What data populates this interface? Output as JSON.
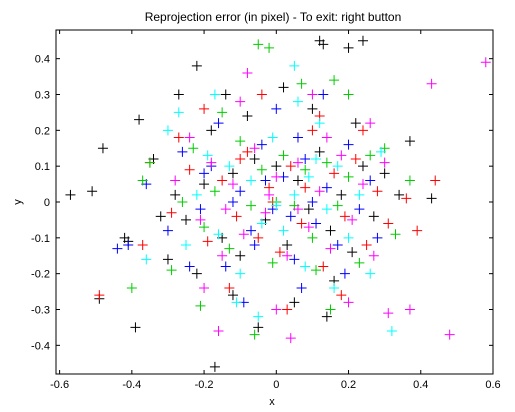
{
  "chart_data": {
    "type": "scatter",
    "title": "Reprojection error (in pixel) - To exit: right button",
    "xlabel": "x",
    "ylabel": "y",
    "xlim": [
      -0.61,
      0.6
    ],
    "ylim": [
      -0.48,
      0.48
    ],
    "xticks": [
      -0.6,
      -0.4,
      -0.2,
      0,
      0.2,
      0.4,
      0.6
    ],
    "xtick_labels": [
      "-0.6",
      "-0.4",
      "-0.2",
      "0",
      "0.2",
      "0.4",
      "0.6"
    ],
    "yticks": [
      -0.4,
      -0.3,
      -0.2,
      -0.1,
      0,
      0.1,
      0.2,
      0.3,
      0.4
    ],
    "ytick_labels": [
      "-0.4",
      "-0.3",
      "-0.2",
      "-0.1",
      "0",
      "0.1",
      "0.2",
      "0.3",
      "0.4"
    ],
    "grid": false,
    "marker": "+",
    "series": [
      {
        "color": "#000000",
        "points": [
          [
            -0.57,
            0.02
          ],
          [
            -0.51,
            0.03
          ],
          [
            -0.48,
            0.15
          ],
          [
            -0.49,
            -0.27
          ],
          [
            -0.42,
            -0.1
          ],
          [
            -0.41,
            -0.11
          ],
          [
            -0.38,
            0.23
          ],
          [
            -0.39,
            -0.35
          ],
          [
            -0.34,
            0.12
          ],
          [
            -0.3,
            -0.16
          ],
          [
            -0.27,
            0.3
          ],
          [
            -0.22,
            0.38
          ],
          [
            -0.17,
            -0.46
          ],
          [
            0.12,
            0.45
          ],
          [
            0.13,
            0.44
          ],
          [
            0.2,
            0.43
          ],
          [
            0.24,
            0.45
          ],
          [
            0.34,
            0.02
          ],
          [
            0.37,
            0.17
          ],
          [
            0.43,
            0.01
          ],
          [
            -0.32,
            -0.04
          ],
          [
            -0.28,
            0.02
          ],
          [
            -0.25,
            -0.05
          ],
          [
            -0.2,
            0.05
          ],
          [
            -0.15,
            -0.1
          ],
          [
            -0.12,
            0.08
          ],
          [
            -0.1,
            -0.15
          ],
          [
            -0.06,
            0.12
          ],
          [
            -0.03,
            -0.05
          ],
          [
            0.0,
            0.1
          ],
          [
            0.03,
            -0.12
          ],
          [
            0.06,
            0.06
          ],
          [
            0.09,
            -0.02
          ],
          [
            0.12,
            0.14
          ],
          [
            0.15,
            -0.08
          ],
          [
            0.18,
            0.02
          ],
          [
            0.21,
            -0.14
          ],
          [
            0.24,
            0.1
          ],
          [
            0.27,
            -0.04
          ],
          [
            0.3,
            0.08
          ],
          [
            -0.22,
            -0.2
          ],
          [
            -0.18,
            0.2
          ],
          [
            -0.12,
            -0.26
          ],
          [
            -0.08,
            0.24
          ],
          [
            0.05,
            -0.28
          ],
          [
            0.1,
            0.26
          ],
          [
            0.16,
            -0.22
          ],
          [
            0.22,
            0.22
          ],
          [
            -0.05,
            -0.35
          ],
          [
            0.02,
            0.32
          ],
          [
            0.14,
            -0.32
          ],
          [
            -0.14,
            0.3
          ]
        ]
      },
      {
        "color": "#0000ff",
        "points": [
          [
            -0.44,
            -0.13
          ],
          [
            -0.41,
            -0.12
          ],
          [
            -0.36,
            0.05
          ],
          [
            -0.3,
            -0.08
          ],
          [
            -0.26,
            0.14
          ],
          [
            -0.21,
            -0.02
          ],
          [
            -0.18,
            0.1
          ],
          [
            -0.14,
            -0.18
          ],
          [
            -0.1,
            0.03
          ],
          [
            -0.07,
            -0.08
          ],
          [
            -0.04,
            0.16
          ],
          [
            -0.01,
            -0.02
          ],
          [
            0.02,
            0.07
          ],
          [
            0.05,
            -0.16
          ],
          [
            0.08,
            0.12
          ],
          [
            0.11,
            -0.06
          ],
          [
            0.14,
            0.04
          ],
          [
            0.17,
            -0.12
          ],
          [
            0.2,
            0.16
          ],
          [
            0.23,
            -0.02
          ],
          [
            0.26,
            0.06
          ],
          [
            -0.24,
            -0.18
          ],
          [
            -0.16,
            0.22
          ],
          [
            -0.09,
            -0.28
          ],
          [
            0.0,
            0.26
          ],
          [
            0.07,
            -0.24
          ],
          [
            0.13,
            0.3
          ],
          [
            0.19,
            -0.2
          ],
          [
            -0.03,
            0.06
          ],
          [
            0.04,
            -0.04
          ],
          [
            -0.12,
            0.0
          ],
          [
            0.1,
            0.0
          ],
          [
            -0.06,
            -0.12
          ],
          [
            0.06,
            0.18
          ],
          [
            -0.2,
            0.08
          ],
          [
            0.28,
            -0.1
          ]
        ]
      },
      {
        "color": "#ff0000",
        "points": [
          [
            -0.49,
            -0.26
          ],
          [
            -0.37,
            -0.12
          ],
          [
            0.36,
            0.01
          ],
          [
            0.39,
            -0.08
          ],
          [
            0.44,
            0.06
          ],
          [
            -0.35,
            0.11
          ],
          [
            -0.29,
            -0.03
          ],
          [
            -0.24,
            0.09
          ],
          [
            -0.19,
            -0.11
          ],
          [
            -0.15,
            0.06
          ],
          [
            -0.11,
            -0.04
          ],
          [
            -0.08,
            0.14
          ],
          [
            -0.05,
            -0.1
          ],
          [
            -0.02,
            0.04
          ],
          [
            0.01,
            -0.14
          ],
          [
            0.04,
            0.1
          ],
          [
            0.07,
            -0.06
          ],
          [
            0.1,
            0.2
          ],
          [
            0.13,
            -0.18
          ],
          [
            0.16,
            0.08
          ],
          [
            0.19,
            -0.04
          ],
          [
            0.22,
            0.12
          ],
          [
            0.25,
            -0.12
          ],
          [
            0.28,
            0.03
          ],
          [
            0.31,
            -0.06
          ],
          [
            -0.2,
            0.26
          ],
          [
            -0.13,
            -0.24
          ],
          [
            -0.04,
            0.3
          ],
          [
            0.03,
            -0.3
          ],
          [
            0.12,
            0.24
          ],
          [
            0.18,
            -0.26
          ],
          [
            -0.27,
            0.18
          ],
          [
            0.24,
            0.2
          ],
          [
            -0.01,
            0.0
          ],
          [
            0.08,
            0.04
          ],
          [
            -0.1,
            0.12
          ]
        ]
      },
      {
        "color": "#00cc00",
        "points": [
          [
            -0.4,
            -0.24
          ],
          [
            -0.35,
            0.11
          ],
          [
            -0.37,
            0.06
          ],
          [
            -0.05,
            0.44
          ],
          [
            -0.02,
            0.43
          ],
          [
            0.16,
            0.34
          ],
          [
            0.2,
            0.3
          ],
          [
            0.33,
            -0.09
          ],
          [
            0.37,
            0.06
          ],
          [
            0.3,
            0.15
          ],
          [
            -0.29,
            -0.19
          ],
          [
            -0.26,
            0.0
          ],
          [
            -0.23,
            0.15
          ],
          [
            -0.2,
            -0.07
          ],
          [
            -0.17,
            0.03
          ],
          [
            -0.13,
            -0.13
          ],
          [
            -0.1,
            0.17
          ],
          [
            -0.07,
            -0.01
          ],
          [
            -0.04,
            0.09
          ],
          [
            -0.01,
            -0.17
          ],
          [
            0.02,
            0.13
          ],
          [
            0.05,
            -0.01
          ],
          [
            0.08,
            0.09
          ],
          [
            0.11,
            -0.19
          ],
          [
            0.14,
            0.11
          ],
          [
            0.17,
            -0.01
          ],
          [
            0.2,
            0.07
          ],
          [
            0.23,
            -0.17
          ],
          [
            0.26,
            0.13
          ],
          [
            -0.21,
            -0.29
          ],
          [
            -0.06,
            -0.37
          ],
          [
            0.07,
            0.33
          ],
          [
            0.15,
            -0.3
          ],
          [
            -0.15,
            0.25
          ],
          [
            0.0,
            0.0
          ],
          [
            0.1,
            -0.1
          ]
        ]
      },
      {
        "color": "#ff00ff",
        "points": [
          [
            0.43,
            0.33
          ],
          [
            0.58,
            0.39
          ],
          [
            0.48,
            -0.37
          ],
          [
            0.31,
            -0.31
          ],
          [
            0.37,
            -0.3
          ],
          [
            -0.24,
            0.18
          ],
          [
            -0.21,
            -0.05
          ],
          [
            -0.18,
            0.11
          ],
          [
            -0.15,
            -0.15
          ],
          [
            -0.12,
            0.05
          ],
          [
            -0.09,
            -0.09
          ],
          [
            -0.06,
            0.15
          ],
          [
            -0.03,
            -0.03
          ],
          [
            0.0,
            0.07
          ],
          [
            0.03,
            -0.15
          ],
          [
            0.06,
            0.11
          ],
          [
            0.09,
            -0.07
          ],
          [
            0.12,
            0.03
          ],
          [
            0.15,
            -0.13
          ],
          [
            0.18,
            0.13
          ],
          [
            0.21,
            -0.05
          ],
          [
            0.24,
            0.05
          ],
          [
            0.27,
            -0.15
          ],
          [
            0.3,
            0.11
          ],
          [
            -0.28,
            0.06
          ],
          [
            -0.2,
            -0.24
          ],
          [
            -0.1,
            0.28
          ],
          [
            0.0,
            -0.3
          ],
          [
            0.1,
            0.3
          ],
          [
            0.2,
            -0.28
          ],
          [
            -0.16,
            -0.36
          ],
          [
            0.04,
            -0.38
          ],
          [
            -0.08,
            0.36
          ],
          [
            0.26,
            0.22
          ],
          [
            0.06,
            -0.02
          ],
          [
            -0.02,
            0.02
          ],
          [
            0.14,
            0.18
          ],
          [
            -0.14,
            -0.02
          ]
        ]
      },
      {
        "color": "#00ffff",
        "points": [
          [
            -0.36,
            -0.16
          ],
          [
            0.32,
            -0.36
          ],
          [
            0.05,
            0.38
          ],
          [
            -0.27,
            0.25
          ],
          [
            -0.22,
            0.02
          ],
          [
            -0.19,
            0.13
          ],
          [
            -0.16,
            -0.09
          ],
          [
            -0.13,
            0.1
          ],
          [
            -0.1,
            -0.2
          ],
          [
            -0.07,
            0.06
          ],
          [
            -0.04,
            -0.06
          ],
          [
            -0.01,
            0.18
          ],
          [
            0.02,
            -0.08
          ],
          [
            0.05,
            0.02
          ],
          [
            0.08,
            -0.18
          ],
          [
            0.11,
            0.12
          ],
          [
            0.14,
            -0.02
          ],
          [
            0.17,
            0.1
          ],
          [
            0.2,
            -0.1
          ],
          [
            0.23,
            0.02
          ],
          [
            0.26,
            -0.2
          ],
          [
            0.29,
            0.14
          ],
          [
            -0.25,
            -0.12
          ],
          [
            -0.17,
            0.3
          ],
          [
            -0.05,
            -0.32
          ],
          [
            0.06,
            0.28
          ],
          [
            0.16,
            -0.24
          ],
          [
            -0.11,
            -0.28
          ],
          [
            0.12,
            0.22
          ],
          [
            -0.3,
            0.2
          ],
          [
            0.0,
            -0.01
          ],
          [
            0.09,
            0.07
          ]
        ]
      }
    ]
  }
}
